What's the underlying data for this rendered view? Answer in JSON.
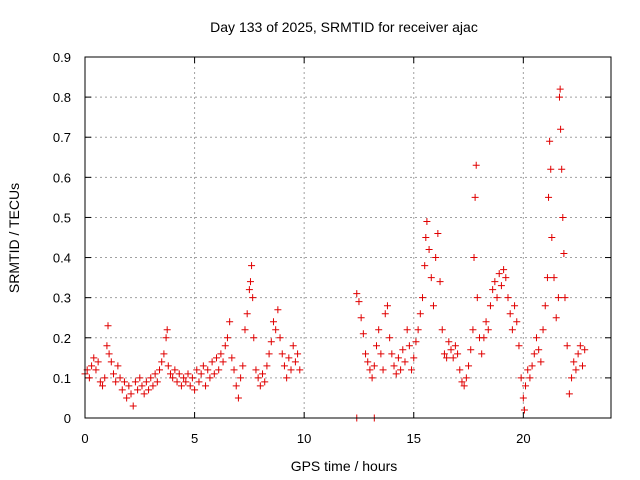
{
  "chart_data": {
    "type": "scatter",
    "title": "Day 133 of 2025, SRMTID for receiver ajac",
    "xlabel": "GPS time / hours",
    "ylabel": "SRMTID / TECUs",
    "xlim": [
      0,
      24
    ],
    "ylim": [
      0,
      0.9
    ],
    "xticks": [
      0,
      5,
      10,
      15,
      20
    ],
    "yticks": [
      0,
      0.1,
      0.2,
      0.3,
      0.4,
      0.5,
      0.6,
      0.7,
      0.8,
      0.9
    ],
    "xtick_labels": [
      "0",
      "5",
      "10",
      "15",
      "20"
    ],
    "ytick_labels": [
      "0",
      "0.1",
      "0.2",
      "0.3",
      "0.4",
      "0.5",
      "0.6",
      "0.7",
      "0.8",
      "0.9"
    ],
    "grid": true,
    "marker": "+",
    "series_color": "#e00000",
    "series": [
      {
        "name": "SRMTID",
        "points": [
          [
            0.0,
            0.11
          ],
          [
            0.1,
            0.12
          ],
          [
            0.2,
            0.1
          ],
          [
            0.3,
            0.13
          ],
          [
            0.4,
            0.15
          ],
          [
            0.5,
            0.12
          ],
          [
            0.6,
            0.14
          ],
          [
            0.7,
            0.09
          ],
          [
            0.8,
            0.08
          ],
          [
            0.9,
            0.1
          ],
          [
            1.0,
            0.18
          ],
          [
            1.05,
            0.23
          ],
          [
            1.1,
            0.16
          ],
          [
            1.2,
            0.14
          ],
          [
            1.3,
            0.11
          ],
          [
            1.4,
            0.09
          ],
          [
            1.5,
            0.13
          ],
          [
            1.6,
            0.1
          ],
          [
            1.7,
            0.07
          ],
          [
            1.8,
            0.09
          ],
          [
            1.9,
            0.05
          ],
          [
            2.0,
            0.08
          ],
          [
            2.1,
            0.06
          ],
          [
            2.2,
            0.03
          ],
          [
            2.3,
            0.09
          ],
          [
            2.4,
            0.07
          ],
          [
            2.5,
            0.1
          ],
          [
            2.6,
            0.08
          ],
          [
            2.7,
            0.06
          ],
          [
            2.8,
            0.09
          ],
          [
            2.9,
            0.07
          ],
          [
            3.0,
            0.1
          ],
          [
            3.1,
            0.08
          ],
          [
            3.2,
            0.11
          ],
          [
            3.3,
            0.09
          ],
          [
            3.4,
            0.12
          ],
          [
            3.5,
            0.14
          ],
          [
            3.6,
            0.16
          ],
          [
            3.7,
            0.2
          ],
          [
            3.75,
            0.22
          ],
          [
            3.8,
            0.13
          ],
          [
            3.9,
            0.11
          ],
          [
            4.0,
            0.1
          ],
          [
            4.1,
            0.12
          ],
          [
            4.2,
            0.09
          ],
          [
            4.3,
            0.11
          ],
          [
            4.4,
            0.08
          ],
          [
            4.5,
            0.1
          ],
          [
            4.6,
            0.09
          ],
          [
            4.7,
            0.11
          ],
          [
            4.8,
            0.08
          ],
          [
            4.9,
            0.1
          ],
          [
            5.0,
            0.07
          ],
          [
            5.1,
            0.12
          ],
          [
            5.2,
            0.09
          ],
          [
            5.3,
            0.11
          ],
          [
            5.4,
            0.13
          ],
          [
            5.5,
            0.08
          ],
          [
            5.6,
            0.12
          ],
          [
            5.7,
            0.1
          ],
          [
            5.8,
            0.14
          ],
          [
            5.9,
            0.11
          ],
          [
            6.0,
            0.15
          ],
          [
            6.1,
            0.12
          ],
          [
            6.2,
            0.16
          ],
          [
            6.3,
            0.14
          ],
          [
            6.4,
            0.18
          ],
          [
            6.5,
            0.2
          ],
          [
            6.6,
            0.24
          ],
          [
            6.7,
            0.15
          ],
          [
            6.8,
            0.12
          ],
          [
            6.9,
            0.08
          ],
          [
            7.0,
            0.05
          ],
          [
            7.1,
            0.1
          ],
          [
            7.2,
            0.13
          ],
          [
            7.3,
            0.22
          ],
          [
            7.4,
            0.26
          ],
          [
            7.5,
            0.32
          ],
          [
            7.55,
            0.34
          ],
          [
            7.6,
            0.38
          ],
          [
            7.65,
            0.3
          ],
          [
            7.7,
            0.2
          ],
          [
            7.8,
            0.12
          ],
          [
            7.9,
            0.1
          ],
          [
            8.0,
            0.08
          ],
          [
            8.1,
            0.11
          ],
          [
            8.2,
            0.09
          ],
          [
            8.3,
            0.13
          ],
          [
            8.4,
            0.16
          ],
          [
            8.5,
            0.19
          ],
          [
            8.6,
            0.24
          ],
          [
            8.7,
            0.22
          ],
          [
            8.8,
            0.27
          ],
          [
            8.9,
            0.2
          ],
          [
            9.0,
            0.16
          ],
          [
            9.1,
            0.13
          ],
          [
            9.2,
            0.1
          ],
          [
            9.3,
            0.15
          ],
          [
            9.4,
            0.12
          ],
          [
            9.5,
            0.18
          ],
          [
            9.6,
            0.14
          ],
          [
            9.7,
            0.16
          ],
          [
            9.8,
            0.12
          ],
          [
            12.4,
            0.0
          ],
          [
            13.2,
            0.0
          ],
          [
            12.4,
            0.31
          ],
          [
            12.5,
            0.29
          ],
          [
            12.6,
            0.25
          ],
          [
            12.7,
            0.21
          ],
          [
            12.8,
            0.16
          ],
          [
            12.9,
            0.14
          ],
          [
            13.0,
            0.12
          ],
          [
            13.1,
            0.1
          ],
          [
            13.2,
            0.13
          ],
          [
            13.3,
            0.18
          ],
          [
            13.4,
            0.22
          ],
          [
            13.5,
            0.16
          ],
          [
            13.6,
            0.12
          ],
          [
            13.7,
            0.26
          ],
          [
            13.8,
            0.28
          ],
          [
            13.9,
            0.2
          ],
          [
            14.0,
            0.16
          ],
          [
            14.1,
            0.13
          ],
          [
            14.2,
            0.11
          ],
          [
            14.3,
            0.15
          ],
          [
            14.4,
            0.12
          ],
          [
            14.5,
            0.17
          ],
          [
            14.6,
            0.14
          ],
          [
            14.7,
            0.22
          ],
          [
            14.8,
            0.18
          ],
          [
            14.9,
            0.12
          ],
          [
            15.0,
            0.15
          ],
          [
            15.1,
            0.19
          ],
          [
            15.2,
            0.22
          ],
          [
            15.3,
            0.26
          ],
          [
            15.4,
            0.3
          ],
          [
            15.5,
            0.38
          ],
          [
            15.55,
            0.45
          ],
          [
            15.6,
            0.49
          ],
          [
            15.7,
            0.42
          ],
          [
            15.8,
            0.35
          ],
          [
            15.9,
            0.28
          ],
          [
            16.0,
            0.4
          ],
          [
            16.1,
            0.46
          ],
          [
            16.2,
            0.34
          ],
          [
            16.3,
            0.22
          ],
          [
            16.4,
            0.16
          ],
          [
            16.5,
            0.15
          ],
          [
            16.6,
            0.19
          ],
          [
            16.7,
            0.17
          ],
          [
            16.8,
            0.15
          ],
          [
            16.9,
            0.18
          ],
          [
            17.0,
            0.16
          ],
          [
            17.1,
            0.12
          ],
          [
            17.2,
            0.09
          ],
          [
            17.3,
            0.08
          ],
          [
            17.4,
            0.1
          ],
          [
            17.5,
            0.13
          ],
          [
            17.6,
            0.17
          ],
          [
            17.7,
            0.22
          ],
          [
            17.75,
            0.4
          ],
          [
            17.8,
            0.55
          ],
          [
            17.85,
            0.63
          ],
          [
            17.9,
            0.3
          ],
          [
            18.0,
            0.2
          ],
          [
            18.1,
            0.16
          ],
          [
            18.2,
            0.2
          ],
          [
            18.3,
            0.24
          ],
          [
            18.4,
            0.22
          ],
          [
            18.5,
            0.28
          ],
          [
            18.6,
            0.32
          ],
          [
            18.7,
            0.34
          ],
          [
            18.8,
            0.3
          ],
          [
            18.9,
            0.36
          ],
          [
            19.0,
            0.33
          ],
          [
            19.1,
            0.37
          ],
          [
            19.2,
            0.35
          ],
          [
            19.3,
            0.3
          ],
          [
            19.4,
            0.26
          ],
          [
            19.5,
            0.22
          ],
          [
            19.6,
            0.28
          ],
          [
            19.7,
            0.24
          ],
          [
            19.8,
            0.18
          ],
          [
            19.9,
            0.1
          ],
          [
            20.0,
            0.05
          ],
          [
            20.05,
            0.02
          ],
          [
            20.1,
            0.08
          ],
          [
            20.2,
            0.12
          ],
          [
            20.3,
            0.1
          ],
          [
            20.4,
            0.13
          ],
          [
            20.5,
            0.16
          ],
          [
            20.6,
            0.2
          ],
          [
            20.7,
            0.17
          ],
          [
            20.8,
            0.14
          ],
          [
            20.9,
            0.22
          ],
          [
            21.0,
            0.28
          ],
          [
            21.1,
            0.35
          ],
          [
            21.15,
            0.55
          ],
          [
            21.2,
            0.69
          ],
          [
            21.25,
            0.62
          ],
          [
            21.3,
            0.45
          ],
          [
            21.4,
            0.35
          ],
          [
            21.5,
            0.25
          ],
          [
            21.6,
            0.3
          ],
          [
            21.65,
            0.8
          ],
          [
            21.68,
            0.82
          ],
          [
            21.7,
            0.72
          ],
          [
            21.75,
            0.62
          ],
          [
            21.8,
            0.5
          ],
          [
            21.85,
            0.41
          ],
          [
            21.9,
            0.3
          ],
          [
            22.0,
            0.18
          ],
          [
            22.1,
            0.06
          ],
          [
            22.2,
            0.1
          ],
          [
            22.3,
            0.14
          ],
          [
            22.4,
            0.12
          ],
          [
            22.5,
            0.16
          ],
          [
            22.6,
            0.18
          ],
          [
            22.7,
            0.13
          ],
          [
            22.8,
            0.17
          ]
        ]
      }
    ]
  }
}
